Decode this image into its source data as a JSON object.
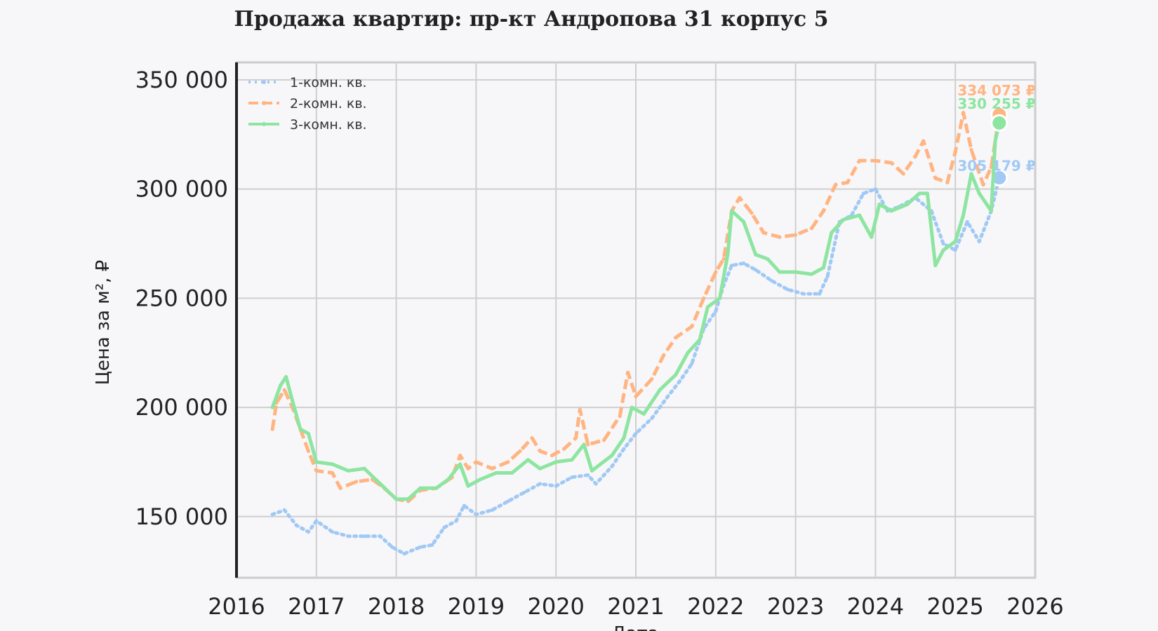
{
  "chart_data": {
    "type": "line",
    "title": "Продажа квартир: пр-кт Андропова 31 корпус 5",
    "xlabel": "Дата",
    "ylabel": "Цена за м², ₽",
    "x_ticks": [
      "2016",
      "2017",
      "2018",
      "2019",
      "2020",
      "2021",
      "2022",
      "2023",
      "2024",
      "2025",
      "2026"
    ],
    "y_ticks": [
      "150 000",
      "200 000",
      "250 000",
      "300 000",
      "350 000"
    ],
    "y_tick_values": [
      150000,
      200000,
      250000,
      300000,
      350000
    ],
    "xlim": [
      2016.0,
      2026.0
    ],
    "ylim": [
      122000,
      358000
    ],
    "grid": true,
    "legend_position": "top-left",
    "series": [
      {
        "name": "1-комн. кв.",
        "color": "#a1c9f4",
        "style": "dotted",
        "end_label": "305 179 ₽",
        "points": [
          [
            2016.45,
            151000
          ],
          [
            2016.6,
            153000
          ],
          [
            2016.75,
            146000
          ],
          [
            2016.9,
            143000
          ],
          [
            2017.0,
            148000
          ],
          [
            2017.2,
            143000
          ],
          [
            2017.4,
            141000
          ],
          [
            2017.6,
            141000
          ],
          [
            2017.8,
            141000
          ],
          [
            2017.95,
            136000
          ],
          [
            2018.1,
            133000
          ],
          [
            2018.3,
            136000
          ],
          [
            2018.45,
            137000
          ],
          [
            2018.6,
            145000
          ],
          [
            2018.75,
            148000
          ],
          [
            2018.85,
            155000
          ],
          [
            2019.0,
            151000
          ],
          [
            2019.2,
            153000
          ],
          [
            2019.4,
            157000
          ],
          [
            2019.6,
            161000
          ],
          [
            2019.8,
            165000
          ],
          [
            2020.0,
            164000
          ],
          [
            2020.2,
            168000
          ],
          [
            2020.4,
            169000
          ],
          [
            2020.5,
            165000
          ],
          [
            2020.7,
            173000
          ],
          [
            2020.85,
            181000
          ],
          [
            2021.0,
            188000
          ],
          [
            2021.2,
            195000
          ],
          [
            2021.4,
            205000
          ],
          [
            2021.55,
            212000
          ],
          [
            2021.7,
            220000
          ],
          [
            2021.85,
            236000
          ],
          [
            2022.0,
            244000
          ],
          [
            2022.1,
            256000
          ],
          [
            2022.2,
            265000
          ],
          [
            2022.35,
            266000
          ],
          [
            2022.5,
            263000
          ],
          [
            2022.7,
            258000
          ],
          [
            2022.9,
            254000
          ],
          [
            2023.1,
            252000
          ],
          [
            2023.3,
            252000
          ],
          [
            2023.4,
            260000
          ],
          [
            2023.55,
            285000
          ],
          [
            2023.7,
            288000
          ],
          [
            2023.85,
            298000
          ],
          [
            2024.0,
            300000
          ],
          [
            2024.15,
            290000
          ],
          [
            2024.3,
            292000
          ],
          [
            2024.5,
            296000
          ],
          [
            2024.7,
            290000
          ],
          [
            2024.85,
            275000
          ],
          [
            2025.0,
            272000
          ],
          [
            2025.15,
            285000
          ],
          [
            2025.3,
            276000
          ],
          [
            2025.45,
            290000
          ],
          [
            2025.55,
            305179
          ]
        ]
      },
      {
        "name": "2-комн. кв.",
        "color": "#ffb482",
        "style": "dashed",
        "end_label": "334 073 ₽",
        "points": [
          [
            2016.45,
            190000
          ],
          [
            2016.5,
            202000
          ],
          [
            2016.6,
            208000
          ],
          [
            2016.7,
            200000
          ],
          [
            2016.8,
            190000
          ],
          [
            2016.9,
            180000
          ],
          [
            2017.0,
            171000
          ],
          [
            2017.2,
            170000
          ],
          [
            2017.3,
            163000
          ],
          [
            2017.5,
            166000
          ],
          [
            2017.7,
            167000
          ],
          [
            2017.85,
            163000
          ],
          [
            2018.0,
            158000
          ],
          [
            2018.15,
            157000
          ],
          [
            2018.3,
            162000
          ],
          [
            2018.5,
            163000
          ],
          [
            2018.7,
            168000
          ],
          [
            2018.8,
            178000
          ],
          [
            2018.9,
            172000
          ],
          [
            2019.0,
            175000
          ],
          [
            2019.2,
            172000
          ],
          [
            2019.4,
            175000
          ],
          [
            2019.55,
            180000
          ],
          [
            2019.7,
            186000
          ],
          [
            2019.8,
            180000
          ],
          [
            2019.95,
            178000
          ],
          [
            2020.1,
            181000
          ],
          [
            2020.25,
            186000
          ],
          [
            2020.3,
            199000
          ],
          [
            2020.4,
            183000
          ],
          [
            2020.6,
            185000
          ],
          [
            2020.8,
            196000
          ],
          [
            2020.9,
            216000
          ],
          [
            2021.0,
            205000
          ],
          [
            2021.2,
            213000
          ],
          [
            2021.35,
            224000
          ],
          [
            2021.5,
            232000
          ],
          [
            2021.7,
            237000
          ],
          [
            2021.85,
            250000
          ],
          [
            2022.0,
            262000
          ],
          [
            2022.1,
            268000
          ],
          [
            2022.2,
            290000
          ],
          [
            2022.3,
            296000
          ],
          [
            2022.45,
            289000
          ],
          [
            2022.6,
            280000
          ],
          [
            2022.8,
            278000
          ],
          [
            2023.0,
            279000
          ],
          [
            2023.2,
            282000
          ],
          [
            2023.35,
            290000
          ],
          [
            2023.5,
            302000
          ],
          [
            2023.65,
            303000
          ],
          [
            2023.8,
            313000
          ],
          [
            2024.0,
            313000
          ],
          [
            2024.2,
            312000
          ],
          [
            2024.35,
            307000
          ],
          [
            2024.5,
            315000
          ],
          [
            2024.6,
            322000
          ],
          [
            2024.75,
            305000
          ],
          [
            2024.9,
            303000
          ],
          [
            2025.0,
            317000
          ],
          [
            2025.1,
            335000
          ],
          [
            2025.2,
            318000
          ],
          [
            2025.35,
            302000
          ],
          [
            2025.45,
            310000
          ],
          [
            2025.55,
            334073
          ]
        ]
      },
      {
        "name": "3-комн. кв.",
        "color": "#8de5a1",
        "style": "solid",
        "end_label": "330 255 ₽",
        "points": [
          [
            2016.45,
            200000
          ],
          [
            2016.55,
            210000
          ],
          [
            2016.62,
            214000
          ],
          [
            2016.7,
            203000
          ],
          [
            2016.8,
            190000
          ],
          [
            2016.9,
            188000
          ],
          [
            2017.0,
            175000
          ],
          [
            2017.2,
            174000
          ],
          [
            2017.4,
            171000
          ],
          [
            2017.6,
            172000
          ],
          [
            2017.8,
            165000
          ],
          [
            2018.0,
            158000
          ],
          [
            2018.15,
            158000
          ],
          [
            2018.3,
            163000
          ],
          [
            2018.5,
            163000
          ],
          [
            2018.65,
            167000
          ],
          [
            2018.8,
            174000
          ],
          [
            2018.9,
            164000
          ],
          [
            2019.05,
            167000
          ],
          [
            2019.25,
            170000
          ],
          [
            2019.45,
            170000
          ],
          [
            2019.65,
            176000
          ],
          [
            2019.8,
            172000
          ],
          [
            2020.0,
            175000
          ],
          [
            2020.2,
            176000
          ],
          [
            2020.35,
            183000
          ],
          [
            2020.45,
            171000
          ],
          [
            2020.7,
            178000
          ],
          [
            2020.85,
            186000
          ],
          [
            2020.95,
            200000
          ],
          [
            2021.1,
            197000
          ],
          [
            2021.3,
            208000
          ],
          [
            2021.5,
            215000
          ],
          [
            2021.65,
            225000
          ],
          [
            2021.8,
            231000
          ],
          [
            2021.9,
            246000
          ],
          [
            2022.05,
            250000
          ],
          [
            2022.15,
            270000
          ],
          [
            2022.2,
            290000
          ],
          [
            2022.35,
            285000
          ],
          [
            2022.5,
            270000
          ],
          [
            2022.65,
            268000
          ],
          [
            2022.8,
            262000
          ],
          [
            2023.0,
            262000
          ],
          [
            2023.2,
            261000
          ],
          [
            2023.35,
            264000
          ],
          [
            2023.45,
            280000
          ],
          [
            2023.6,
            286000
          ],
          [
            2023.8,
            288000
          ],
          [
            2023.95,
            278000
          ],
          [
            2024.05,
            293000
          ],
          [
            2024.2,
            290000
          ],
          [
            2024.4,
            293000
          ],
          [
            2024.55,
            298000
          ],
          [
            2024.65,
            298000
          ],
          [
            2024.75,
            265000
          ],
          [
            2024.85,
            272000
          ],
          [
            2025.0,
            276000
          ],
          [
            2025.1,
            288000
          ],
          [
            2025.2,
            307000
          ],
          [
            2025.3,
            298000
          ],
          [
            2025.45,
            290000
          ],
          [
            2025.5,
            322000
          ],
          [
            2025.55,
            330255
          ]
        ]
      }
    ]
  }
}
